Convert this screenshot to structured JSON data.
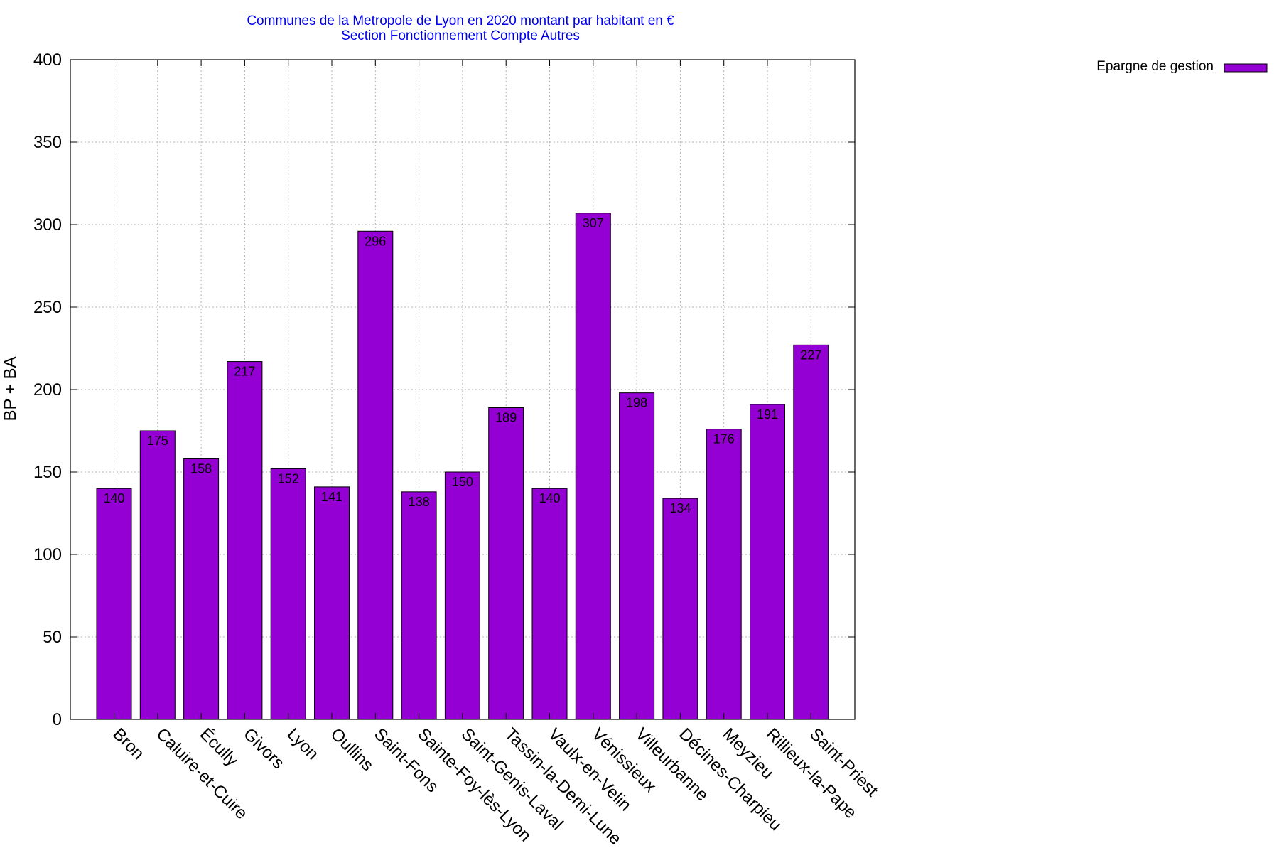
{
  "chart_data": {
    "type": "bar",
    "title": "Communes de la Metropole de Lyon en 2020 montant par habitant en €",
    "subtitle": "Section Fonctionnement Compte Autres",
    "xlabel": "",
    "ylabel": "BP + BA",
    "ylim": [
      0,
      400
    ],
    "yticks": [
      0,
      50,
      100,
      150,
      200,
      250,
      300,
      350,
      400
    ],
    "grid": true,
    "legend_position": "top-right",
    "bar_color": "#9400d3",
    "categories": [
      "Bron",
      "Caluire-et-Cuire",
      "Écully",
      "Givors",
      "Lyon",
      "Oullins",
      "Saint-Fons",
      "Sainte-Foy-lès-Lyon",
      "Saint-Genis-Laval",
      "Tassin-la-Demi-Lune",
      "Vaulx-en-Velin",
      "Vénissieux",
      "Villeurbanne",
      "Décines-Charpieu",
      "Meyzieu",
      "Rillieux-la-Pape",
      "Saint-Priest"
    ],
    "series": [
      {
        "name": "Epargne de gestion",
        "values": [
          140,
          175,
          158,
          217,
          152,
          141,
          296,
          138,
          150,
          189,
          140,
          307,
          198,
          134,
          176,
          191,
          227
        ]
      }
    ]
  }
}
